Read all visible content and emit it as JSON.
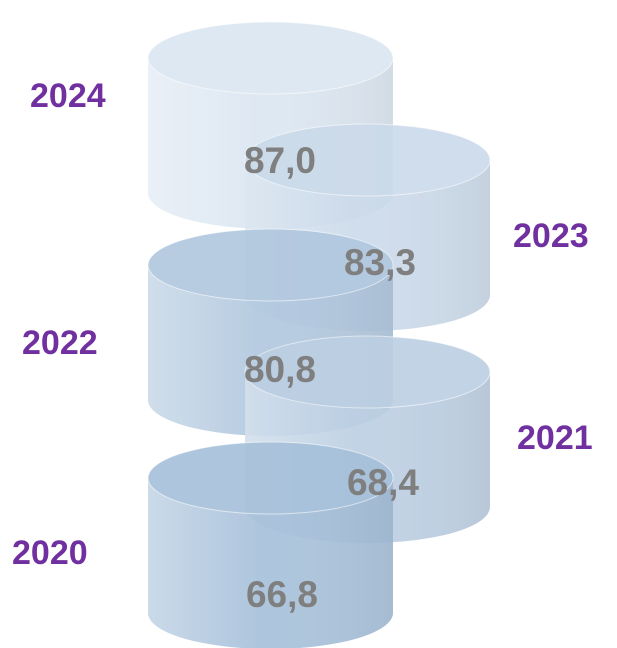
{
  "chart_data": {
    "type": "cylinder-stack",
    "categories": [
      "2020",
      "2021",
      "2022",
      "2023",
      "2024"
    ],
    "values": [
      66.8,
      68.4,
      80.8,
      83.3,
      87.0
    ],
    "value_labels": [
      "66,8",
      "68,4",
      "80,8",
      "83,3",
      "87,0"
    ],
    "colors": [
      "#a6c0da",
      "#bccfe3",
      "#b0c7de",
      "#cbdaea",
      "#dbe6f1"
    ]
  }
}
